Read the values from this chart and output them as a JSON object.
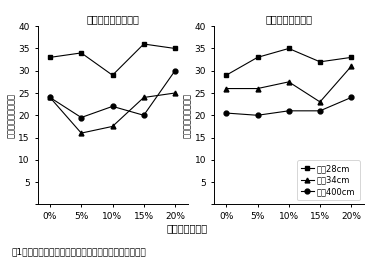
{
  "x_labels": [
    "0%",
    "5%",
    "10%",
    "15%",
    "20%"
  ],
  "x_values": [
    0,
    1,
    2,
    3,
    4
  ],
  "left_title": "冬まき初夏どり作型",
  "right_title": "夏まき冬どり作型",
  "ylabel": "結球重の変動係数％",
  "xlabel": "株間の変動係数",
  "ylim": [
    0,
    40
  ],
  "yticks": [
    0,
    5,
    10,
    15,
    20,
    25,
    30,
    35,
    40
  ],
  "leg28": "株間28cm",
  "leg34": "株間34cm",
  "leg40": "株間400cm",
  "left_28cm": [
    33,
    34,
    29,
    36,
    35
  ],
  "left_34cm": [
    24,
    16,
    17.5,
    24,
    25
  ],
  "left_40cm": [
    24,
    19.5,
    22,
    20,
    30
  ],
  "right_28cm": [
    29,
    33,
    35,
    32,
    33
  ],
  "right_34cm": [
    26,
    26,
    27.5,
    23,
    31
  ],
  "right_40cm": [
    20.5,
    20,
    21,
    21,
    24
  ],
  "caption": "図1　株間のばらつき程度が結球重の揃いに及ぼす影音"
}
